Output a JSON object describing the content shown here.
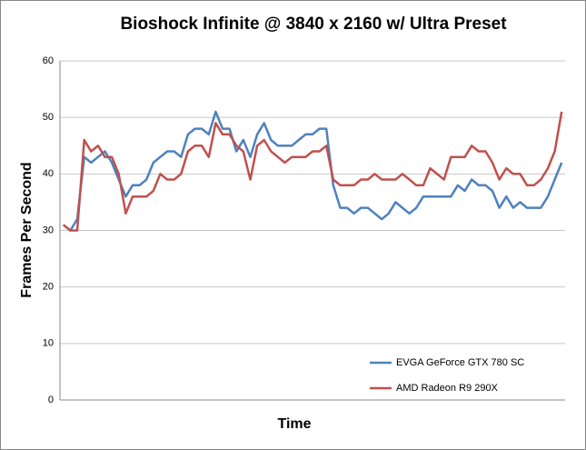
{
  "chart_data": {
    "type": "line",
    "title": "Bioshock Infinite @ 3840 x 2160 w/ Ultra Preset",
    "x_label": "Time",
    "y_label": "Frames Per Second",
    "categories": [
      null,
      null,
      null,
      null,
      null,
      null,
      null,
      null,
      null,
      null,
      null,
      null,
      null,
      null,
      null,
      null,
      null,
      null,
      null,
      null,
      null,
      null,
      null,
      null,
      null,
      null,
      null,
      null,
      null,
      null,
      null,
      null,
      null,
      null,
      null,
      null,
      null,
      null,
      null,
      null,
      null,
      null,
      null,
      null,
      null,
      null,
      null,
      null,
      null,
      null,
      null,
      null,
      null,
      null,
      null,
      null,
      null,
      null,
      null,
      null,
      null,
      null,
      null,
      null,
      null,
      null,
      null,
      null,
      null,
      null,
      null,
      null,
      null
    ],
    "series": [
      {
        "name": "EVGA GeForce GTX 780 SC",
        "color": "#4f81bd",
        "values": [
          31,
          30,
          32,
          43,
          42,
          43,
          44,
          42,
          39,
          36,
          38,
          38,
          39,
          42,
          43,
          44,
          44,
          43,
          47,
          48,
          48,
          47,
          51,
          48,
          48,
          44,
          46,
          43,
          47,
          49,
          46,
          45,
          45,
          45,
          46,
          47,
          47,
          48,
          48,
          38,
          34,
          34,
          33,
          34,
          34,
          33,
          32,
          33,
          35,
          34,
          33,
          34,
          36,
          36,
          36,
          36,
          36,
          38,
          37,
          39,
          38,
          38,
          37,
          34,
          36,
          34,
          35,
          34,
          34,
          34,
          36,
          39,
          42
        ]
      },
      {
        "name": "AMD Radeon R9 290X",
        "color": "#c0504d",
        "values": [
          31,
          30,
          30,
          46,
          44,
          45,
          43,
          43,
          40,
          33,
          36,
          36,
          36,
          37,
          40,
          39,
          39,
          40,
          44,
          45,
          45,
          43,
          49,
          47,
          47,
          45,
          44,
          39,
          45,
          46,
          44,
          43,
          42,
          43,
          43,
          43,
          44,
          44,
          45,
          39,
          38,
          38,
          38,
          39,
          39,
          40,
          39,
          39,
          39,
          40,
          39,
          38,
          38,
          41,
          40,
          39,
          43,
          43,
          43,
          45,
          44,
          44,
          42,
          39,
          41,
          40,
          40,
          38,
          38,
          39,
          41,
          44,
          51
        ]
      }
    ],
    "ylim": [
      0,
      60
    ],
    "yticks": [
      0,
      10,
      20,
      30,
      40,
      50,
      60
    ],
    "grid": true
  }
}
